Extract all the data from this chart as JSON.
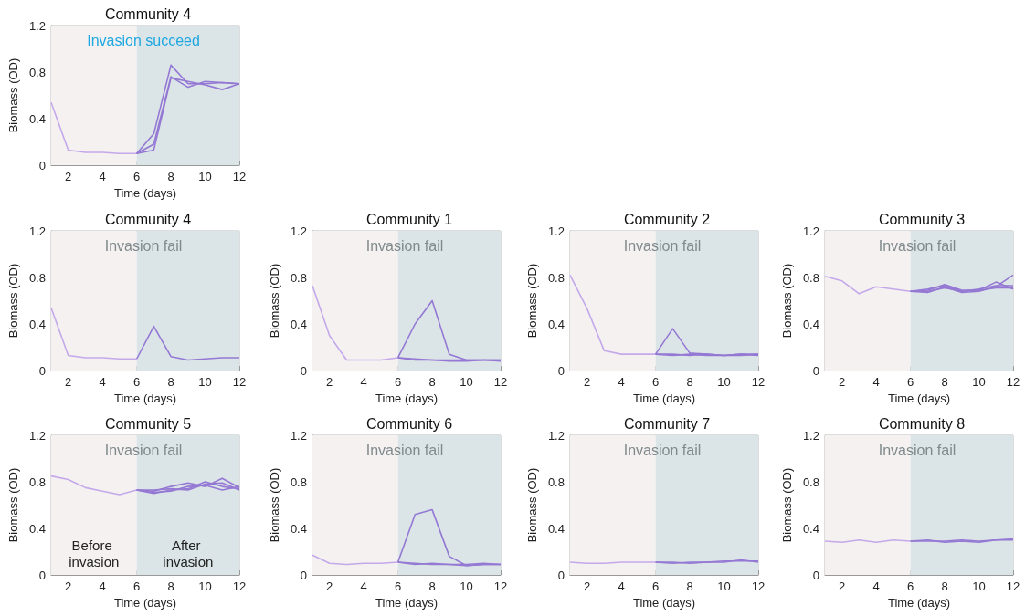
{
  "chart_data": [
    {
      "type": "line",
      "title": "Community 4",
      "xlabel": "Time (days)",
      "ylabel": "Biomass (OD)",
      "xlim": [
        1,
        12
      ],
      "xticks": [
        2,
        4,
        6,
        8,
        10,
        12
      ],
      "ylim": [
        0,
        1.2
      ],
      "yticks": [
        0,
        0.4,
        0.8,
        1.2
      ],
      "bands": [
        {
          "axis": "x",
          "from": 1,
          "to": 6,
          "color": "#f5f1f1"
        },
        {
          "axis": "x",
          "from": 6,
          "to": 12,
          "color": "#dbe5e7"
        }
      ],
      "annotations": [
        "Invasion succeed"
      ],
      "series": [
        {
          "color": "#c4a9ea",
          "x": [
            1,
            2,
            3,
            4,
            5,
            6
          ],
          "values": [
            0.54,
            0.13,
            0.11,
            0.11,
            0.1,
            0.1
          ]
        },
        {
          "color": "#9478d4",
          "x": [
            6,
            7,
            8,
            9,
            10,
            11,
            12
          ],
          "values": [
            0.1,
            0.27,
            0.86,
            0.7,
            0.7,
            0.71,
            0.7
          ]
        },
        {
          "color": "#9478d4",
          "x": [
            6,
            7,
            8,
            9,
            10,
            11,
            12
          ],
          "values": [
            0.1,
            0.18,
            0.76,
            0.67,
            0.72,
            0.71,
            0.7
          ]
        },
        {
          "color": "#9478d4",
          "x": [
            6,
            7,
            8,
            9,
            10,
            11,
            12
          ],
          "values": [
            0.1,
            0.13,
            0.75,
            0.72,
            0.69,
            0.65,
            0.7
          ]
        }
      ]
    },
    {
      "type": "line",
      "title": "Community 4",
      "xlabel": "Time (days)",
      "ylabel": "Biomass (OD)",
      "xlim": [
        1,
        12
      ],
      "xticks": [
        2,
        4,
        6,
        8,
        10,
        12
      ],
      "ylim": [
        0,
        1.2
      ],
      "yticks": [
        0,
        0.4,
        0.8,
        1.2
      ],
      "bands": [
        {
          "axis": "x",
          "from": 1,
          "to": 6,
          "color": "#f5f1f1"
        },
        {
          "axis": "x",
          "from": 6,
          "to": 12,
          "color": "#dbe5e7"
        }
      ],
      "annotations": [
        "Invasion fail"
      ],
      "series": [
        {
          "color": "#c4a9ea",
          "x": [
            1,
            2,
            3,
            4,
            5,
            6
          ],
          "values": [
            0.54,
            0.13,
            0.11,
            0.11,
            0.1,
            0.1
          ]
        },
        {
          "color": "#9478d4",
          "x": [
            6,
            7,
            8,
            9,
            10,
            11,
            12
          ],
          "values": [
            0.1,
            0.38,
            0.12,
            0.09,
            0.1,
            0.11,
            0.11
          ]
        }
      ]
    },
    {
      "type": "line",
      "title": "Community 1",
      "xlabel": "Time (days)",
      "ylabel": "Biomass (OD)",
      "xlim": [
        1,
        12
      ],
      "xticks": [
        2,
        4,
        6,
        8,
        10,
        12
      ],
      "ylim": [
        0,
        1.2
      ],
      "yticks": [
        0,
        0.4,
        0.8,
        1.2
      ],
      "bands": [
        {
          "axis": "x",
          "from": 1,
          "to": 6,
          "color": "#f5f1f1"
        },
        {
          "axis": "x",
          "from": 6,
          "to": 12,
          "color": "#dbe5e7"
        }
      ],
      "annotations": [
        "Invasion fail"
      ],
      "series": [
        {
          "color": "#c4a9ea",
          "x": [
            1,
            2,
            3,
            4,
            5,
            6
          ],
          "values": [
            0.73,
            0.3,
            0.09,
            0.09,
            0.09,
            0.11
          ]
        },
        {
          "color": "#9478d4",
          "x": [
            6,
            7,
            8,
            9,
            10,
            11,
            12
          ],
          "values": [
            0.11,
            0.4,
            0.6,
            0.14,
            0.09,
            0.09,
            0.09
          ]
        },
        {
          "color": "#9478d4",
          "x": [
            6,
            7,
            8,
            9,
            10,
            11,
            12
          ],
          "values": [
            0.11,
            0.09,
            0.09,
            0.08,
            0.08,
            0.09,
            0.09
          ]
        },
        {
          "color": "#9478d4",
          "x": [
            6,
            7,
            8,
            9,
            10,
            11,
            12
          ],
          "values": [
            0.11,
            0.1,
            0.09,
            0.09,
            0.09,
            0.09,
            0.08
          ]
        }
      ]
    },
    {
      "type": "line",
      "title": "Community 2",
      "xlabel": "Time (days)",
      "ylabel": "Biomass (OD)",
      "xlim": [
        1,
        12
      ],
      "xticks": [
        2,
        4,
        6,
        8,
        10,
        12
      ],
      "ylim": [
        0,
        1.2
      ],
      "yticks": [
        0,
        0.4,
        0.8,
        1.2
      ],
      "bands": [
        {
          "axis": "x",
          "from": 1,
          "to": 6,
          "color": "#f5f1f1"
        },
        {
          "axis": "x",
          "from": 6,
          "to": 12,
          "color": "#dbe5e7"
        }
      ],
      "annotations": [
        "Invasion fail"
      ],
      "series": [
        {
          "color": "#c4a9ea",
          "x": [
            1,
            2,
            3,
            4,
            5,
            6
          ],
          "values": [
            0.82,
            0.53,
            0.17,
            0.14,
            0.14,
            0.14
          ]
        },
        {
          "color": "#9478d4",
          "x": [
            6,
            7,
            8,
            9,
            10,
            11,
            12
          ],
          "values": [
            0.14,
            0.36,
            0.15,
            0.14,
            0.13,
            0.14,
            0.14
          ]
        },
        {
          "color": "#9478d4",
          "x": [
            6,
            7,
            8,
            9,
            10,
            11,
            12
          ],
          "values": [
            0.14,
            0.13,
            0.14,
            0.13,
            0.13,
            0.13,
            0.14
          ]
        },
        {
          "color": "#9478d4",
          "x": [
            6,
            7,
            8,
            9,
            10,
            11,
            12
          ],
          "values": [
            0.14,
            0.14,
            0.13,
            0.14,
            0.13,
            0.14,
            0.13
          ]
        }
      ]
    },
    {
      "type": "line",
      "title": "Community 3",
      "xlabel": "Time (days)",
      "ylabel": "Biomass (OD)",
      "xlim": [
        1,
        12
      ],
      "xticks": [
        2,
        4,
        6,
        8,
        10,
        12
      ],
      "ylim": [
        0,
        1.2
      ],
      "yticks": [
        0,
        0.4,
        0.8,
        1.2
      ],
      "bands": [
        {
          "axis": "x",
          "from": 1,
          "to": 6,
          "color": "#f5f1f1"
        },
        {
          "axis": "x",
          "from": 6,
          "to": 12,
          "color": "#dbe5e7"
        }
      ],
      "annotations": [
        "Invasion fail"
      ],
      "series": [
        {
          "color": "#c4a9ea",
          "x": [
            1,
            2,
            3,
            4,
            5,
            6
          ],
          "values": [
            0.81,
            0.77,
            0.66,
            0.72,
            0.7,
            0.68
          ]
        },
        {
          "color": "#9478d4",
          "x": [
            6,
            7,
            8,
            9,
            10,
            11,
            12
          ],
          "values": [
            0.68,
            0.69,
            0.74,
            0.69,
            0.69,
            0.76,
            0.7
          ]
        },
        {
          "color": "#9478d4",
          "x": [
            6,
            7,
            8,
            9,
            10,
            11,
            12
          ],
          "values": [
            0.68,
            0.67,
            0.72,
            0.67,
            0.68,
            0.72,
            0.82
          ]
        },
        {
          "color": "#9478d4",
          "x": [
            6,
            7,
            8,
            9,
            10,
            11,
            12
          ],
          "values": [
            0.68,
            0.68,
            0.71,
            0.68,
            0.7,
            0.73,
            0.73
          ]
        },
        {
          "color": "#9478d4",
          "x": [
            6,
            7,
            8,
            9,
            10,
            11,
            12
          ],
          "values": [
            0.68,
            0.7,
            0.73,
            0.68,
            0.69,
            0.71,
            0.71
          ]
        }
      ]
    },
    {
      "type": "line",
      "title": "Community 5",
      "xlabel": "Time (days)",
      "ylabel": "Biomass (OD)",
      "xlim": [
        1,
        12
      ],
      "xticks": [
        2,
        4,
        6,
        8,
        10,
        12
      ],
      "ylim": [
        0,
        1.2
      ],
      "yticks": [
        0,
        0.4,
        0.8,
        1.2
      ],
      "bands": [
        {
          "axis": "x",
          "from": 1,
          "to": 6,
          "color": "#f5f1f1"
        },
        {
          "axis": "x",
          "from": 6,
          "to": 12,
          "color": "#dbe5e7"
        }
      ],
      "annotations": [
        "Invasion fail",
        "Before invasion",
        "After invasion"
      ],
      "series": [
        {
          "color": "#c4a9ea",
          "x": [
            1,
            2,
            3,
            4,
            5,
            6
          ],
          "values": [
            0.85,
            0.82,
            0.75,
            0.72,
            0.69,
            0.73
          ]
        },
        {
          "color": "#9478d4",
          "x": [
            6,
            7,
            8,
            9,
            10,
            11,
            12
          ],
          "values": [
            0.73,
            0.72,
            0.76,
            0.79,
            0.76,
            0.83,
            0.75
          ]
        },
        {
          "color": "#9478d4",
          "x": [
            6,
            7,
            8,
            9,
            10,
            11,
            12
          ],
          "values": [
            0.73,
            0.7,
            0.73,
            0.74,
            0.8,
            0.76,
            0.74
          ]
        },
        {
          "color": "#9478d4",
          "x": [
            6,
            7,
            8,
            9,
            10,
            11,
            12
          ],
          "values": [
            0.73,
            0.73,
            0.74,
            0.73,
            0.78,
            0.79,
            0.73
          ]
        },
        {
          "color": "#9478d4",
          "x": [
            6,
            7,
            8,
            9,
            10,
            11,
            12
          ],
          "values": [
            0.73,
            0.71,
            0.72,
            0.76,
            0.77,
            0.73,
            0.76
          ]
        }
      ]
    },
    {
      "type": "line",
      "title": "Community 6",
      "xlabel": "Time (days)",
      "ylabel": "Biomass (OD)",
      "xlim": [
        1,
        12
      ],
      "xticks": [
        2,
        4,
        6,
        8,
        10,
        12
      ],
      "ylim": [
        0,
        1.2
      ],
      "yticks": [
        0,
        0.4,
        0.8,
        1.2
      ],
      "bands": [
        {
          "axis": "x",
          "from": 1,
          "to": 6,
          "color": "#f5f1f1"
        },
        {
          "axis": "x",
          "from": 6,
          "to": 12,
          "color": "#dbe5e7"
        }
      ],
      "annotations": [
        "Invasion fail"
      ],
      "series": [
        {
          "color": "#c4a9ea",
          "x": [
            1,
            2,
            3,
            4,
            5,
            6
          ],
          "values": [
            0.17,
            0.1,
            0.09,
            0.1,
            0.1,
            0.11
          ]
        },
        {
          "color": "#9478d4",
          "x": [
            6,
            7,
            8,
            9,
            10,
            11,
            12
          ],
          "values": [
            0.11,
            0.52,
            0.56,
            0.16,
            0.08,
            0.09,
            0.09
          ]
        },
        {
          "color": "#9478d4",
          "x": [
            6,
            7,
            8,
            9,
            10,
            11,
            12
          ],
          "values": [
            0.11,
            0.09,
            0.1,
            0.09,
            0.08,
            0.09,
            0.09
          ]
        },
        {
          "color": "#9478d4",
          "x": [
            6,
            7,
            8,
            9,
            10,
            11,
            12
          ],
          "values": [
            0.11,
            0.1,
            0.09,
            0.09,
            0.09,
            0.1,
            0.09
          ]
        }
      ]
    },
    {
      "type": "line",
      "title": "Community 7",
      "xlabel": "Time (days)",
      "ylabel": "Biomass (OD)",
      "xlim": [
        1,
        12
      ],
      "xticks": [
        2,
        4,
        6,
        8,
        10,
        12
      ],
      "ylim": [
        0,
        1.2
      ],
      "yticks": [
        0,
        0.4,
        0.8,
        1.2
      ],
      "bands": [
        {
          "axis": "x",
          "from": 1,
          "to": 6,
          "color": "#f5f1f1"
        },
        {
          "axis": "x",
          "from": 6,
          "to": 12,
          "color": "#dbe5e7"
        }
      ],
      "annotations": [
        "Invasion fail"
      ],
      "series": [
        {
          "color": "#c4a9ea",
          "x": [
            1,
            2,
            3,
            4,
            5,
            6
          ],
          "values": [
            0.11,
            0.1,
            0.1,
            0.11,
            0.11,
            0.11
          ]
        },
        {
          "color": "#9478d4",
          "x": [
            6,
            7,
            8,
            9,
            10,
            11,
            12
          ],
          "values": [
            0.11,
            0.1,
            0.11,
            0.11,
            0.12,
            0.12,
            0.12
          ]
        },
        {
          "color": "#9478d4",
          "x": [
            6,
            7,
            8,
            9,
            10,
            11,
            12
          ],
          "values": [
            0.11,
            0.11,
            0.1,
            0.11,
            0.11,
            0.13,
            0.11
          ]
        }
      ]
    },
    {
      "type": "line",
      "title": "Community 8",
      "xlabel": "Time (days)",
      "ylabel": "Biomass (OD)",
      "xlim": [
        1,
        12
      ],
      "xticks": [
        2,
        4,
        6,
        8,
        10,
        12
      ],
      "ylim": [
        0,
        1.2
      ],
      "yticks": [
        0,
        0.4,
        0.8,
        1.2
      ],
      "bands": [
        {
          "axis": "x",
          "from": 1,
          "to": 6,
          "color": "#f5f1f1"
        },
        {
          "axis": "x",
          "from": 6,
          "to": 12,
          "color": "#dbe5e7"
        }
      ],
      "annotations": [
        "Invasion fail"
      ],
      "series": [
        {
          "color": "#c4a9ea",
          "x": [
            1,
            2,
            3,
            4,
            5,
            6
          ],
          "values": [
            0.29,
            0.28,
            0.3,
            0.28,
            0.3,
            0.29
          ]
        },
        {
          "color": "#9478d4",
          "x": [
            6,
            7,
            8,
            9,
            10,
            11,
            12
          ],
          "values": [
            0.29,
            0.29,
            0.29,
            0.3,
            0.29,
            0.3,
            0.31
          ]
        },
        {
          "color": "#9478d4",
          "x": [
            6,
            7,
            8,
            9,
            10,
            11,
            12
          ],
          "values": [
            0.29,
            0.3,
            0.28,
            0.29,
            0.28,
            0.3,
            0.3
          ]
        }
      ]
    }
  ]
}
